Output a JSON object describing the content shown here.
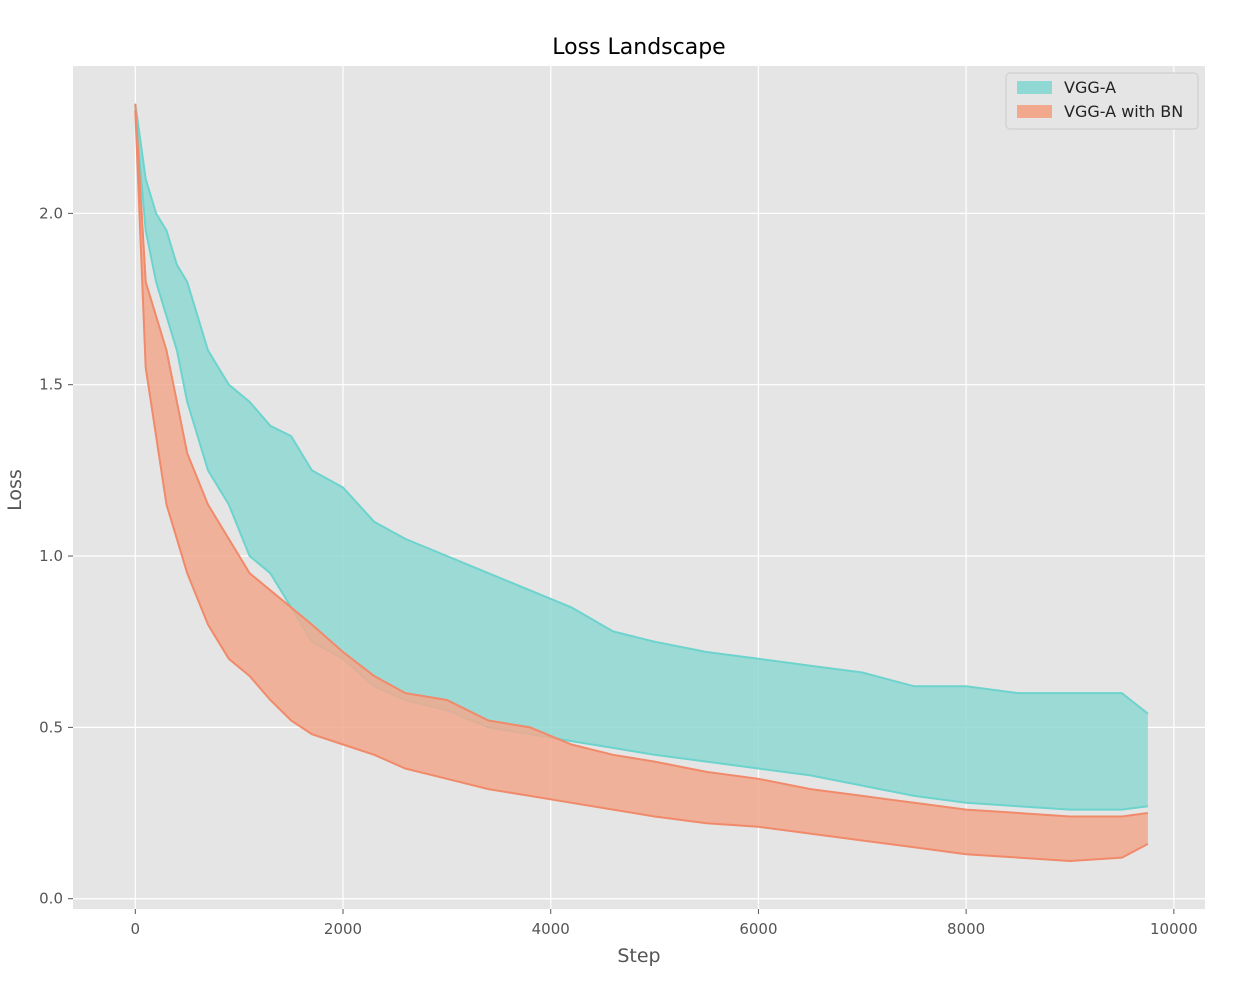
{
  "chart_data": {
    "type": "area",
    "title": "Loss Landscape",
    "xlabel": "Step",
    "ylabel": "Loss",
    "xlim": [
      -600,
      10300
    ],
    "ylim": [
      -0.03,
      2.43
    ],
    "xticks": [
      0,
      2000,
      4000,
      6000,
      8000,
      10000
    ],
    "xtick_labels": [
      "0",
      "2000",
      "4000",
      "6000",
      "8000",
      "10000"
    ],
    "yticks": [
      0.0,
      0.5,
      1.0,
      1.5,
      2.0
    ],
    "ytick_labels": [
      "0.0",
      "0.5",
      "1.0",
      "1.5",
      "2.0"
    ],
    "grid": true,
    "legend_position": "top-right",
    "colors": {
      "plot_background": "#e5e5e5",
      "grid": "#ffffff",
      "vgg_fill": "#8fd8d3",
      "vgg_line": "#6dd3cd",
      "bn_fill": "#f2a88d",
      "bn_line": "#f08a6a"
    },
    "x": [
      0,
      100,
      200,
      300,
      400,
      500,
      700,
      900,
      1100,
      1300,
      1500,
      1700,
      2000,
      2300,
      2600,
      3000,
      3400,
      3800,
      4200,
      4600,
      5000,
      5500,
      6000,
      6500,
      7000,
      7500,
      8000,
      8500,
      9000,
      9500,
      9750
    ],
    "series": [
      {
        "name": "VGG-A",
        "upper": [
          2.32,
          2.1,
          2.0,
          1.95,
          1.85,
          1.8,
          1.6,
          1.5,
          1.45,
          1.38,
          1.35,
          1.25,
          1.2,
          1.1,
          1.05,
          1.0,
          0.95,
          0.9,
          0.85,
          0.78,
          0.75,
          0.72,
          0.7,
          0.68,
          0.66,
          0.62,
          0.62,
          0.6,
          0.6,
          0.6,
          0.54
        ],
        "lower": [
          2.3,
          1.95,
          1.8,
          1.7,
          1.6,
          1.45,
          1.25,
          1.15,
          1.0,
          0.95,
          0.85,
          0.75,
          0.7,
          0.62,
          0.58,
          0.55,
          0.5,
          0.48,
          0.46,
          0.44,
          0.42,
          0.4,
          0.38,
          0.36,
          0.33,
          0.3,
          0.28,
          0.27,
          0.26,
          0.26,
          0.27
        ]
      },
      {
        "name": "VGG-A with BN",
        "upper": [
          2.32,
          1.8,
          1.7,
          1.6,
          1.45,
          1.3,
          1.15,
          1.05,
          0.95,
          0.9,
          0.85,
          0.8,
          0.72,
          0.65,
          0.6,
          0.58,
          0.52,
          0.5,
          0.45,
          0.42,
          0.4,
          0.37,
          0.35,
          0.32,
          0.3,
          0.28,
          0.26,
          0.25,
          0.24,
          0.24,
          0.25
        ],
        "lower": [
          2.3,
          1.55,
          1.35,
          1.15,
          1.05,
          0.95,
          0.8,
          0.7,
          0.65,
          0.58,
          0.52,
          0.48,
          0.45,
          0.42,
          0.38,
          0.35,
          0.32,
          0.3,
          0.28,
          0.26,
          0.24,
          0.22,
          0.21,
          0.19,
          0.17,
          0.15,
          0.13,
          0.12,
          0.11,
          0.12,
          0.16
        ]
      }
    ]
  }
}
